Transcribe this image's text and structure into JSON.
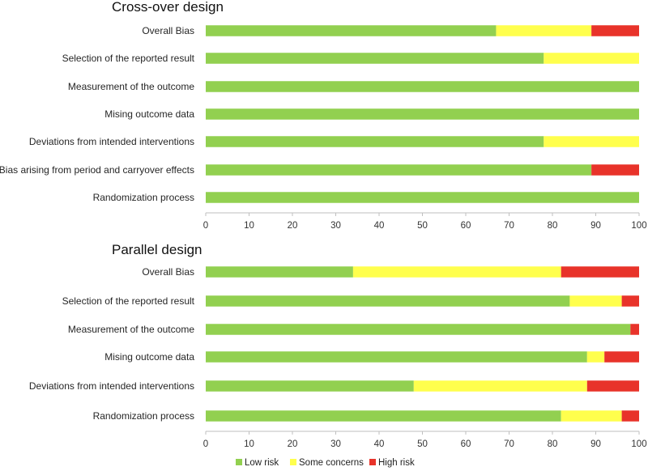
{
  "chart_data": [
    {
      "type": "bar",
      "orientation": "horizontal",
      "stacked": true,
      "title": "Cross-over design",
      "categories": [
        "Overall Bias",
        "Selection of the reported result",
        "Measurement of the outcome",
        "Mising outcome data",
        "Deviations from intended interventions",
        "Bias arising from period and carryover effects",
        "Randomization process"
      ],
      "series": [
        {
          "name": "Low risk",
          "values": [
            67,
            78,
            100,
            100,
            78,
            89,
            100
          ]
        },
        {
          "name": "Some concerns",
          "values": [
            22,
            22,
            0,
            0,
            22,
            0,
            0
          ]
        },
        {
          "name": "High risk",
          "values": [
            11,
            0,
            0,
            0,
            0,
            11,
            0
          ]
        }
      ],
      "xlim": [
        0,
        100
      ],
      "xticks": [
        "0",
        "10",
        "20",
        "30",
        "40",
        "50",
        "60",
        "70",
        "80",
        "90",
        "100"
      ],
      "grid": false
    },
    {
      "type": "bar",
      "orientation": "horizontal",
      "stacked": true,
      "title": "Parallel design",
      "categories": [
        "Overall Bias",
        "Selection of the reported result",
        "Measurement of the outcome",
        "Mising outcome data",
        "Deviations from intended interventions",
        "Randomization process"
      ],
      "series": [
        {
          "name": "Low risk",
          "values": [
            34,
            84,
            98,
            88,
            48,
            82
          ]
        },
        {
          "name": "Some concerns",
          "values": [
            48,
            12,
            0,
            4,
            40,
            14
          ]
        },
        {
          "name": "High risk",
          "values": [
            18,
            4,
            2,
            8,
            12,
            4
          ]
        }
      ],
      "xlim": [
        0,
        100
      ],
      "xticks": [
        "0",
        "10",
        "20",
        "30",
        "40",
        "50",
        "60",
        "70",
        "80",
        "90",
        "100"
      ],
      "grid": false
    }
  ],
  "legend": {
    "position": "bottom",
    "items": [
      "Low risk",
      "Some concerns",
      "High risk"
    ]
  },
  "colors": {
    "Low risk": "#92d050",
    "Some concerns": "#ffff4d",
    "High risk": "#e8332a",
    "axis": "#bfbfbf"
  }
}
